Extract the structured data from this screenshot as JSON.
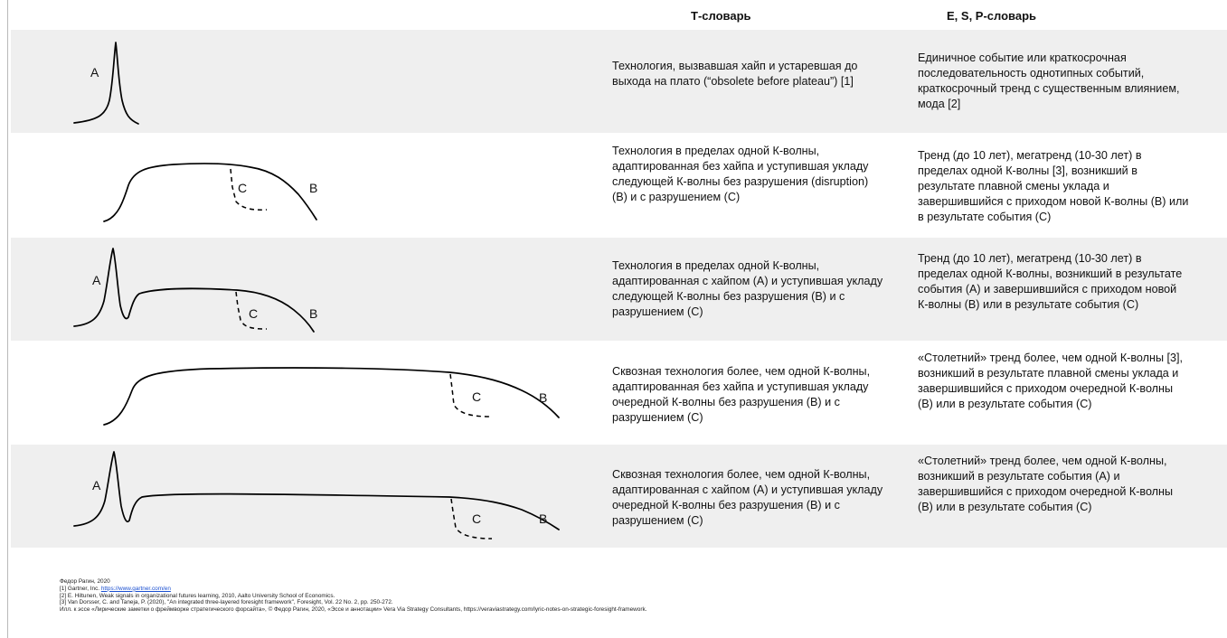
{
  "header": {
    "t_title": "Т-словарь",
    "e_title": "E, S, P-словарь"
  },
  "rows": [
    {
      "t_text": "Технология, вызвавшая хайп и устаревшая до выхода на плато (“obsolete before plateau”) [1]",
      "e_text": "Единичное событие или краткосрочная последовательность однотипных событий, краткосрочный тренд с существенным влиянием, мода [2]",
      "labels": [
        "A"
      ]
    },
    {
      "t_text": "Технология в пределах одной К-волны, адаптированная без хайпа и уступившая укладу следующей К-волны без разрушения (disruption) (B) и с разрушением (C)",
      "e_text": "Тренд (до 10 лет), мегатренд (10-30 лет) в пределах одной К-волны [3], возникший в результате плавной смены уклада и завершившийся с приходом новой К-волны (B) или в результате события (C)",
      "labels": [
        "C",
        "B"
      ]
    },
    {
      "t_text": "Технология в пределах одной К-волны, адаптированная с хайпом (A) и уступившая укладу следующей К-волны без разрушения (B) и с разрушением (C)",
      "e_text": "Тренд (до 10 лет), мегатренд (10-30 лет) в пределах одной К-волны, возникший в результате события (A) и завершившийся с приходом новой К-волны (B) или в результате события (C)",
      "labels": [
        "A",
        "C",
        "B"
      ]
    },
    {
      "t_text": "Сквозная технология более, чем одной К-волны, адаптированная без хайпа и уступившая укладу очередной К-волны без разрушения (B) и с разрушением (C)",
      "e_text": "«Столетний» тренд более, чем одной К-волны [3], возникший в результате плавной смены уклада и завершившийся с приходом очередной К-волны (B) или в результате события (C)",
      "labels": [
        "C",
        "B"
      ]
    },
    {
      "t_text": "Сквозная технология более, чем одной К-волны, адаптированная с хайпом (A) и уступившая укладу очередной К-волны без разрушения (B) и с разрушением (C)",
      "e_text": "«Столетний» тренд более, чем одной К-волны, возникший в результате события (A) и завершившийся с приходом очередной К-волны (B) или в результате события (C)",
      "labels": [
        "A",
        "C",
        "B"
      ]
    }
  ],
  "footer": {
    "author": "Федор Рагин, 2020",
    "ref1_prefix": "[1] Gartner, Inc. ",
    "ref1_link": "https://www.gartner.com/en",
    "ref2": "[2] E. Hiltunen, Weak signals in organizational futures learning, 2010, Aalto University School of Economics.",
    "ref3": "[3] Van Dorsser, C. and Taneja, P. (2020), \"An integrated three-layered foresight framework\", Foresight, Vol. 22 No. 2, pp. 250-272.",
    "illustration": "Илл. к эссе «Лирические заметки о фреймворке стратегического форсайта», © Федор Рагин, 2020, «Эссе и аннотации» Vera Via Strategy Consultants, https://veraviastrategy.com/lyric-notes-on-strategic-foresight-framework."
  }
}
